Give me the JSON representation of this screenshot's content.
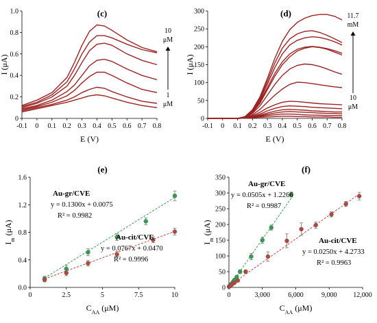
{
  "chart_data": [
    {
      "type": "line",
      "panel": "(c)",
      "xlabel": "E (V)",
      "ylabel": "I (μA)",
      "xlim": [
        -0.1,
        0.8
      ],
      "ylim": [
        0,
        1.0
      ],
      "xticks": [
        "-0.1",
        "0",
        "0.1",
        "0.2",
        "0.3",
        "0.4",
        "0.5",
        "0.6",
        "0.7",
        "0.8"
      ],
      "yticks": [
        "0",
        "0.2",
        "0.4",
        "0.6",
        "0.8",
        "1.0"
      ],
      "annotations": {
        "top": "10",
        "top_unit": "μM",
        "bottom": "1",
        "bottom_unit": "μM"
      },
      "x": [
        -0.1,
        0.0,
        0.1,
        0.2,
        0.25,
        0.3,
        0.35,
        0.4,
        0.45,
        0.5,
        0.6,
        0.7,
        0.8
      ],
      "series": [
        {
          "values": [
            0.06,
            0.09,
            0.12,
            0.15,
            0.17,
            0.19,
            0.21,
            0.22,
            0.21,
            0.19,
            0.15,
            0.12,
            0.1
          ]
        },
        {
          "values": [
            0.07,
            0.1,
            0.13,
            0.17,
            0.2,
            0.24,
            0.27,
            0.29,
            0.28,
            0.25,
            0.2,
            0.16,
            0.14
          ]
        },
        {
          "values": [
            0.08,
            0.11,
            0.15,
            0.21,
            0.26,
            0.33,
            0.39,
            0.43,
            0.43,
            0.4,
            0.33,
            0.27,
            0.24
          ]
        },
        {
          "values": [
            0.09,
            0.12,
            0.17,
            0.25,
            0.31,
            0.4,
            0.49,
            0.54,
            0.55,
            0.53,
            0.46,
            0.4,
            0.36
          ]
        },
        {
          "values": [
            0.1,
            0.14,
            0.2,
            0.3,
            0.4,
            0.52,
            0.63,
            0.69,
            0.7,
            0.68,
            0.6,
            0.54,
            0.5
          ]
        },
        {
          "values": [
            0.11,
            0.15,
            0.22,
            0.34,
            0.46,
            0.6,
            0.71,
            0.77,
            0.77,
            0.75,
            0.69,
            0.64,
            0.61
          ]
        },
        {
          "values": [
            0.12,
            0.17,
            0.24,
            0.38,
            0.52,
            0.68,
            0.81,
            0.87,
            0.86,
            0.82,
            0.73,
            0.66,
            0.62
          ]
        }
      ]
    },
    {
      "type": "line",
      "panel": "(d)",
      "xlabel": "E (V)",
      "ylabel": "I (μA)",
      "xlim": [
        -0.1,
        0.8
      ],
      "ylim": [
        0,
        300
      ],
      "xticks": [
        "-0.1",
        "0",
        "0.1",
        "0.2",
        "0.3",
        "0.4",
        "0.5",
        "0.6",
        "0.7",
        "0.8"
      ],
      "yticks": [
        "0",
        "50",
        "100",
        "150",
        "200",
        "250",
        "300"
      ],
      "annotations": {
        "top": "11.7",
        "top_unit": "mM",
        "bottom": "10",
        "bottom_unit": "μM"
      },
      "x": [
        -0.1,
        0.1,
        0.15,
        0.2,
        0.25,
        0.3,
        0.35,
        0.4,
        0.45,
        0.5,
        0.55,
        0.6,
        0.65,
        0.7,
        0.75,
        0.8
      ],
      "series": [
        {
          "values": [
            0,
            0,
            1,
            2,
            3,
            4,
            5,
            6,
            6,
            5,
            5,
            4,
            4,
            4,
            3,
            3
          ]
        },
        {
          "values": [
            0,
            0,
            1,
            3,
            5,
            8,
            10,
            12,
            12,
            11,
            10,
            9,
            9,
            8,
            8,
            8
          ]
        },
        {
          "values": [
            0,
            0,
            1,
            3,
            7,
            11,
            15,
            18,
            19,
            18,
            17,
            16,
            15,
            14,
            14,
            13
          ]
        },
        {
          "values": [
            0,
            0,
            1,
            4,
            9,
            15,
            20,
            24,
            25,
            24,
            23,
            21,
            20,
            19,
            18,
            18
          ]
        },
        {
          "values": [
            0,
            0,
            1,
            5,
            12,
            21,
            28,
            33,
            35,
            34,
            33,
            31,
            30,
            29,
            28,
            27
          ]
        },
        {
          "values": [
            0,
            0,
            2,
            7,
            17,
            29,
            38,
            45,
            48,
            47,
            45,
            43,
            41,
            40,
            39,
            38
          ]
        },
        {
          "values": [
            0,
            0,
            2,
            10,
            25,
            45,
            65,
            82,
            95,
            101,
            100,
            97,
            94,
            91,
            88,
            86
          ]
        },
        {
          "values": [
            0,
            0,
            3,
            14,
            35,
            65,
            95,
            120,
            138,
            148,
            152,
            150,
            145,
            138,
            130,
            123
          ]
        },
        {
          "values": [
            0,
            0,
            3,
            16,
            42,
            80,
            118,
            150,
            172,
            188,
            196,
            200,
            198,
            193,
            185,
            177
          ]
        },
        {
          "values": [
            0,
            0,
            4,
            18,
            46,
            86,
            126,
            158,
            180,
            193,
            199,
            201,
            199,
            195,
            189,
            182
          ]
        },
        {
          "values": [
            0,
            0,
            4,
            20,
            50,
            96,
            142,
            180,
            205,
            218,
            225,
            228,
            226,
            221,
            214,
            205
          ]
        },
        {
          "values": [
            0,
            0,
            5,
            22,
            55,
            104,
            155,
            196,
            222,
            236,
            243,
            245,
            240,
            232,
            222,
            212
          ]
        },
        {
          "values": [
            0,
            0,
            5,
            24,
            60,
            112,
            168,
            215,
            248,
            268,
            280,
            287,
            290,
            290,
            285,
            275
          ]
        }
      ]
    },
    {
      "type": "scatter",
      "panel": "(e)",
      "xlabel": "C",
      "xlabel_sub": "AA",
      "xlabel_unit": "(μM)",
      "ylabel": "I",
      "ylabel_sub": "m",
      "ylabel_unit": "(μA)",
      "xlim": [
        0,
        10
      ],
      "ylim": [
        0,
        1.6
      ],
      "xticks": [
        "0",
        "2.5",
        "5",
        "7.5",
        "10"
      ],
      "yticks": [
        "0.0",
        "0.4",
        "0.8",
        "1.2",
        "1.6"
      ],
      "series": [
        {
          "name": "Au-gr/CVE",
          "equation": "y = 0.1300x + 0.0075",
          "r2": "R² = 0.9982",
          "color": "#2e9e4f",
          "x": [
            1,
            2.5,
            4,
            6,
            8,
            10
          ],
          "values": [
            0.13,
            0.27,
            0.51,
            0.73,
            0.96,
            1.33
          ],
          "errors": [
            0.03,
            0.05,
            0.05,
            0.05,
            0.05,
            0.07
          ],
          "fit": [
            0.13,
            0.0075
          ]
        },
        {
          "name": "Au-cit/CVE",
          "equation": "y = 0.0767x + 0.0470",
          "r2": "R² = 0.9996",
          "color": "#b5473a",
          "x": [
            1,
            2.5,
            4,
            6,
            8.5,
            10
          ],
          "values": [
            0.11,
            0.21,
            0.35,
            0.48,
            0.69,
            0.81
          ],
          "errors": [
            0.03,
            0.04,
            0.04,
            0.04,
            0.04,
            0.05
          ],
          "fit": [
            0.0767,
            0.047
          ]
        }
      ]
    },
    {
      "type": "scatter",
      "panel": "(f)",
      "xlabel": "C",
      "xlabel_sub": "AA",
      "xlabel_unit": "(μM)",
      "ylabel": "I",
      "ylabel_sub": "m",
      "ylabel_unit": "(μA)",
      "xlim": [
        0,
        12000
      ],
      "ylim": [
        0,
        350
      ],
      "xticks": [
        "0",
        "3,000",
        "6,000",
        "9,000",
        "12,000"
      ],
      "yticks": [
        "0",
        "50",
        "100",
        "150",
        "200",
        "250",
        "300",
        "350"
      ],
      "series": [
        {
          "name": "Au-gr/CVE",
          "equation": "y = 0.0505x + 1.2266",
          "r2": "R² = 0.9987",
          "color": "#2e9e4f",
          "x": [
            10,
            50,
            100,
            200,
            300,
            400,
            500,
            700,
            1000,
            2000,
            3000,
            3800,
            5600
          ],
          "values": [
            2,
            4,
            6,
            10,
            14,
            19,
            24,
            33,
            50,
            98,
            150,
            190,
            295
          ],
          "errors": [
            1,
            1,
            2,
            2,
            3,
            3,
            4,
            5,
            6,
            10,
            10,
            8,
            8
          ],
          "fit": [
            0.0505,
            1.2266
          ]
        },
        {
          "name": "Au-cit/CVE",
          "equation": "y = 0.0250x + 4.2733",
          "r2": "R² = 0.9963",
          "color": "#b5473a",
          "x": [
            10,
            50,
            100,
            200,
            300,
            500,
            800,
            1500,
            3500,
            5200,
            6500,
            7800,
            9200,
            10500,
            11700
          ],
          "values": [
            3,
            4,
            6,
            8,
            10,
            15,
            22,
            50,
            98,
            148,
            185,
            198,
            232,
            265,
            290
          ],
          "errors": [
            1,
            1,
            2,
            2,
            2,
            3,
            4,
            6,
            15,
            22,
            20,
            10,
            8,
            8,
            12
          ],
          "fit": [
            0.025,
            4.2733
          ]
        }
      ]
    }
  ]
}
